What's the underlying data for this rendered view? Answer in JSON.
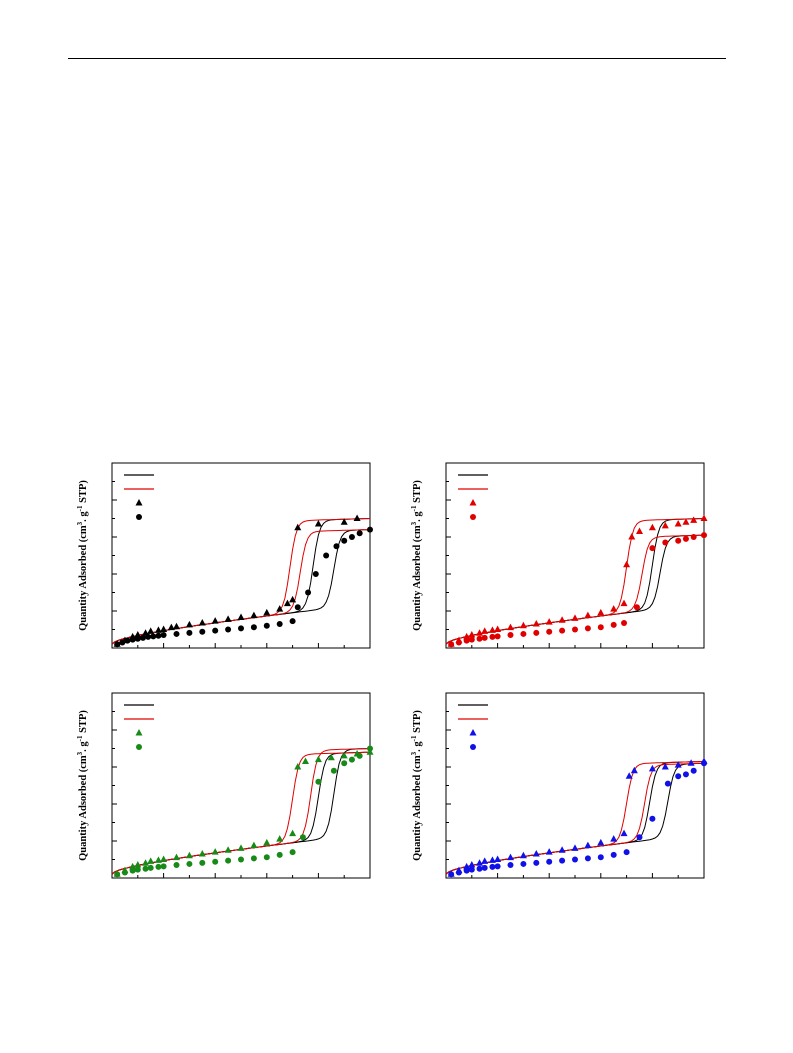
{
  "page": {
    "top_rule": true
  },
  "chart_data": [
    {
      "type": "line",
      "panel": "top-left",
      "color": "#000000",
      "xlabel": "",
      "ylabel": "Quantity Adsorbed (cm3. g-1 STP)",
      "xlim": [
        0,
        1
      ],
      "ylim": [
        0,
        100
      ],
      "grid": false,
      "legend": {
        "position": "top-left",
        "entries": [
          {
            "marker": "line",
            "color": "#000000",
            "label": ""
          },
          {
            "marker": "line",
            "color": "#e00000",
            "label": ""
          },
          {
            "marker": "triangle",
            "color": "#000000",
            "label": ""
          },
          {
            "marker": "circle",
            "color": "#000000",
            "label": ""
          }
        ]
      },
      "series": [
        {
          "marker": "triangle",
          "role": "adsorption",
          "offset": 12,
          "x": [
            0.02,
            0.05,
            0.08,
            0.1,
            0.13,
            0.15,
            0.18,
            0.2,
            0.23,
            0.25,
            0.3,
            0.35,
            0.4,
            0.45,
            0.5,
            0.55,
            0.6,
            0.65,
            0.68,
            0.7,
            0.72,
            0.8,
            0.9,
            0.95
          ],
          "y": [
            2,
            4,
            6,
            7,
            8,
            9,
            9.5,
            10,
            11,
            11.5,
            12.5,
            13.5,
            14.5,
            15.5,
            16.5,
            17.5,
            19,
            21,
            24,
            26,
            65,
            67,
            68,
            70
          ]
        },
        {
          "marker": "circle",
          "role": "adsorption",
          "offset": 0,
          "x": [
            0.02,
            0.04,
            0.06,
            0.08,
            0.1,
            0.12,
            0.14,
            0.16,
            0.18,
            0.2,
            0.25,
            0.3,
            0.35,
            0.4,
            0.45,
            0.5,
            0.55,
            0.6,
            0.65,
            0.7,
            0.72,
            0.76,
            0.79,
            0.83,
            0.87,
            0.9,
            0.93,
            0.96,
            1.0
          ],
          "y": [
            2,
            3,
            4,
            4.5,
            5,
            5.5,
            6,
            6.3,
            6.6,
            7,
            7.6,
            8.2,
            8.8,
            9.4,
            10,
            10.6,
            11.2,
            12,
            13,
            14.5,
            22,
            30,
            40,
            50,
            55,
            58,
            60,
            62,
            64
          ]
        }
      ],
      "fit_black": {
        "triangle_step": 0.78,
        "circle_step": 0.86
      },
      "fit_red": {
        "triangle_step": 0.69,
        "circle_step": 0.73
      }
    },
    {
      "type": "line",
      "panel": "top-right",
      "color": "#e00000",
      "xlabel": "",
      "ylabel": "Quantity Adsorbed (cm3. g-1 STP)",
      "xlim": [
        0,
        1
      ],
      "ylim": [
        0,
        100
      ],
      "grid": false,
      "legend": {
        "position": "top-left",
        "entries": [
          {
            "marker": "line",
            "color": "#000000",
            "label": ""
          },
          {
            "marker": "line",
            "color": "#e00000",
            "label": ""
          },
          {
            "marker": "triangle",
            "color": "#e00000",
            "label": ""
          },
          {
            "marker": "circle",
            "color": "#e00000",
            "label": ""
          }
        ]
      },
      "series": [
        {
          "marker": "triangle",
          "role": "adsorption",
          "offset": 12,
          "x": [
            0.02,
            0.05,
            0.08,
            0.1,
            0.13,
            0.15,
            0.18,
            0.2,
            0.25,
            0.3,
            0.35,
            0.4,
            0.45,
            0.5,
            0.55,
            0.6,
            0.65,
            0.69,
            0.7,
            0.72,
            0.75,
            0.8,
            0.85,
            0.9,
            0.93,
            0.96,
            1.0
          ],
          "y": [
            2,
            4,
            6,
            7,
            8,
            9,
            9.5,
            10,
            11,
            12,
            13,
            14,
            15,
            16,
            17.5,
            19,
            21,
            24,
            45,
            60,
            63,
            65,
            66,
            67,
            68,
            69,
            70
          ]
        },
        {
          "marker": "circle",
          "role": "adsorption",
          "offset": 0,
          "x": [
            0.02,
            0.05,
            0.08,
            0.1,
            0.13,
            0.15,
            0.18,
            0.2,
            0.25,
            0.3,
            0.35,
            0.4,
            0.45,
            0.5,
            0.55,
            0.6,
            0.65,
            0.69,
            0.74,
            0.8,
            0.85,
            0.9,
            0.93,
            0.96,
            1.0
          ],
          "y": [
            2,
            3,
            4,
            4.5,
            5,
            5.5,
            6,
            6.3,
            7,
            7.6,
            8.2,
            8.8,
            9.4,
            10,
            10.6,
            11.2,
            12.5,
            13.5,
            22,
            54,
            57,
            58,
            59,
            60,
            61
          ]
        }
      ],
      "fit_black": {
        "triangle_step": 0.8,
        "circle_step": 0.83
      },
      "fit_red": {
        "triangle_step": 0.7,
        "circle_step": 0.76
      }
    },
    {
      "type": "line",
      "panel": "bottom-left",
      "color": "#188a18",
      "xlabel": "",
      "ylabel": "Quantity Adsorbed (cm3. g-1 STP)",
      "xlim": [
        0,
        1
      ],
      "ylim": [
        0,
        100
      ],
      "grid": false,
      "legend": {
        "position": "top-left",
        "entries": [
          {
            "marker": "line",
            "color": "#000000",
            "label": ""
          },
          {
            "marker": "line",
            "color": "#e00000",
            "label": ""
          },
          {
            "marker": "triangle",
            "color": "#188a18",
            "label": ""
          },
          {
            "marker": "circle",
            "color": "#188a18",
            "label": ""
          }
        ]
      },
      "series": [
        {
          "marker": "triangle",
          "role": "adsorption",
          "offset": 12,
          "x": [
            0.02,
            0.05,
            0.08,
            0.1,
            0.13,
            0.15,
            0.18,
            0.2,
            0.25,
            0.3,
            0.35,
            0.4,
            0.45,
            0.5,
            0.55,
            0.6,
            0.65,
            0.7,
            0.72,
            0.75,
            0.8,
            0.85,
            0.9,
            0.95,
            1.0
          ],
          "y": [
            2,
            4,
            6,
            7,
            8,
            9,
            9.5,
            10,
            11,
            12,
            13,
            14,
            15,
            16,
            17.5,
            19,
            21,
            24,
            60,
            63,
            64,
            65,
            66,
            67,
            68
          ]
        },
        {
          "marker": "circle",
          "role": "adsorption",
          "offset": 0,
          "x": [
            0.02,
            0.05,
            0.08,
            0.1,
            0.13,
            0.15,
            0.18,
            0.2,
            0.25,
            0.3,
            0.35,
            0.4,
            0.45,
            0.5,
            0.55,
            0.6,
            0.65,
            0.7,
            0.74,
            0.8,
            0.86,
            0.9,
            0.93,
            0.96,
            1.0
          ],
          "y": [
            2,
            3,
            4,
            4.5,
            5,
            5.5,
            6,
            6.3,
            7,
            7.6,
            8.2,
            8.8,
            9.4,
            10,
            10.6,
            11.2,
            12.5,
            14,
            22,
            52,
            58,
            62,
            64,
            66,
            70
          ]
        }
      ],
      "fit_black": {
        "triangle_step": 0.8,
        "circle_step": 0.86
      },
      "fit_red": {
        "triangle_step": 0.7,
        "circle_step": 0.77
      }
    },
    {
      "type": "line",
      "panel": "bottom-right",
      "color": "#1010e8",
      "xlabel": "",
      "ylabel": "Quantity Adsorbed (cm3. g-1 STP)",
      "xlim": [
        0,
        1
      ],
      "ylim": [
        0,
        100
      ],
      "grid": false,
      "legend": {
        "position": "top-left",
        "entries": [
          {
            "marker": "line",
            "color": "#000000",
            "label": ""
          },
          {
            "marker": "line",
            "color": "#e00000",
            "label": ""
          },
          {
            "marker": "triangle",
            "color": "#1010e8",
            "label": ""
          },
          {
            "marker": "circle",
            "color": "#1010e8",
            "label": ""
          }
        ]
      },
      "series": [
        {
          "marker": "triangle",
          "role": "adsorption",
          "offset": 12,
          "x": [
            0.02,
            0.05,
            0.08,
            0.1,
            0.13,
            0.15,
            0.18,
            0.2,
            0.25,
            0.3,
            0.35,
            0.4,
            0.45,
            0.5,
            0.55,
            0.6,
            0.65,
            0.69,
            0.71,
            0.73,
            0.8,
            0.85,
            0.9,
            0.95,
            1.0
          ],
          "y": [
            2,
            4,
            6,
            7,
            8,
            9,
            9.5,
            10,
            11,
            12,
            13,
            14,
            15,
            16,
            17.5,
            19,
            21,
            24,
            55,
            58,
            59,
            60,
            61,
            62,
            63
          ]
        },
        {
          "marker": "circle",
          "role": "adsorption",
          "offset": 0,
          "x": [
            0.02,
            0.05,
            0.08,
            0.1,
            0.13,
            0.15,
            0.18,
            0.2,
            0.25,
            0.3,
            0.35,
            0.4,
            0.45,
            0.5,
            0.55,
            0.6,
            0.65,
            0.7,
            0.75,
            0.8,
            0.86,
            0.9,
            0.93,
            0.96,
            1.0
          ],
          "y": [
            2,
            3,
            4,
            4.5,
            5,
            5.5,
            6,
            6.3,
            7,
            7.6,
            8.2,
            8.8,
            9.4,
            10,
            10.6,
            11.2,
            12.5,
            14,
            22,
            32,
            51,
            55,
            56,
            58,
            62
          ]
        }
      ],
      "fit_black": {
        "triangle_step": 0.79,
        "circle_step": 0.86
      },
      "fit_red": {
        "triangle_step": 0.7,
        "circle_step": 0.77
      }
    }
  ]
}
